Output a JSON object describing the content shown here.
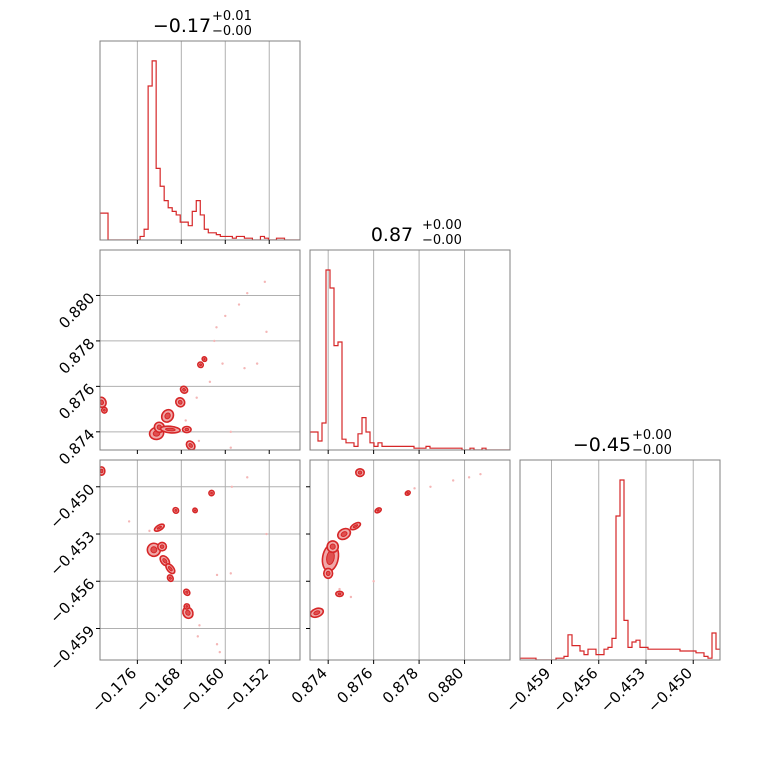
{
  "chart_data": [
    {
      "type": "histogram",
      "panel": "1-1",
      "title_main": "−0.17",
      "title_sup": "+0.01",
      "title_sub": "−0.00",
      "xlim": [
        -0.1828,
        -0.1464
      ],
      "x_edges_start": -0.1828,
      "bin_width": 0.00073,
      "counts": [
        15,
        15,
        0,
        0,
        0,
        0,
        0,
        0,
        0,
        0,
        2,
        6,
        86,
        100,
        40,
        30,
        22,
        18,
        16,
        14,
        10,
        10,
        8,
        16,
        22,
        14,
        6,
        4,
        4,
        3,
        2,
        2,
        2,
        1,
        2,
        2,
        1,
        1,
        0,
        0,
        2,
        1,
        0,
        0,
        1,
        1,
        0,
        0,
        0,
        0
      ],
      "xticks": [],
      "xticklabels": [],
      "yticks": [],
      "yticklabels": []
    },
    {
      "type": "contour",
      "panel": "2-1",
      "xlim": [
        -0.1828,
        -0.1464
      ],
      "ylim": [
        0.8732,
        0.882
      ],
      "yticks": [
        0.874,
        0.876,
        0.878,
        0.88
      ],
      "yticklabels": [
        "0.874",
        "0.876",
        "0.878",
        "0.880"
      ],
      "blobs": [
        {
          "x": -0.1725,
          "y": 0.87393,
          "rx": 0.0011,
          "ry": 0.00022,
          "rot": -10
        },
        {
          "x": -0.172,
          "y": 0.8742,
          "rx": 0.0007,
          "ry": 0.00018,
          "rot": -35
        },
        {
          "x": -0.1705,
          "y": 0.8747,
          "rx": 0.001,
          "ry": 0.0002,
          "rot": -55
        },
        {
          "x": -0.17,
          "y": 0.8741,
          "rx": 0.0016,
          "ry": 0.0001,
          "rot": 5
        },
        {
          "x": -0.167,
          "y": 0.8741,
          "rx": 0.0006,
          "ry": 9e-05,
          "rot": 0
        },
        {
          "x": -0.1682,
          "y": 0.8753,
          "rx": 0.0006,
          "ry": 0.00016,
          "rot": -40
        },
        {
          "x": -0.1675,
          "y": 0.87585,
          "rx": 0.0004,
          "ry": 0.00012,
          "rot": -50
        },
        {
          "x": -0.1663,
          "y": 0.8734,
          "rx": 0.0005,
          "ry": 0.00017,
          "rot": -40
        },
        {
          "x": -0.1645,
          "y": 0.87695,
          "rx": 0.0003,
          "ry": 8e-05,
          "rot": -45
        },
        {
          "x": -0.1638,
          "y": 0.8772,
          "rx": 0.0002,
          "ry": 6e-05,
          "rot": -45
        },
        {
          "x": -0.1825,
          "y": 0.8753,
          "rx": 0.0006,
          "ry": 0.00018,
          "rot": -20
        },
        {
          "x": -0.182,
          "y": 0.87495,
          "rx": 0.0003,
          "ry": 8e-05,
          "rot": 0
        }
      ],
      "scatter": [
        {
          "x": -0.1575,
          "y": 0.8796
        },
        {
          "x": -0.156,
          "y": 0.8801
        },
        {
          "x": -0.1528,
          "y": 0.8806
        },
        {
          "x": -0.1525,
          "y": 0.8784
        },
        {
          "x": -0.16,
          "y": 0.8791
        },
        {
          "x": -0.162,
          "y": 0.878
        },
        {
          "x": -0.1605,
          "y": 0.877
        },
        {
          "x": -0.1565,
          "y": 0.8768
        },
        {
          "x": -0.1652,
          "y": 0.8755
        },
        {
          "x": -0.159,
          "y": 0.874
        },
        {
          "x": -0.159,
          "y": 0.8733
        },
        {
          "x": -0.1648,
          "y": 0.8736
        },
        {
          "x": -0.1672,
          "y": 0.8745
        },
        {
          "x": -0.1616,
          "y": 0.8786
        },
        {
          "x": -0.1542,
          "y": 0.877
        },
        {
          "x": -0.1628,
          "y": 0.8762
        }
      ]
    },
    {
      "type": "histogram",
      "panel": "2-2",
      "title_main": "0.87",
      "title_sup": "+0.00",
      "title_sub": "−0.00",
      "xlim": [
        0.8732,
        0.882
      ],
      "x_edges_start": 0.8732,
      "bin_width": 0.000176,
      "counts": [
        10,
        10,
        5,
        15,
        100,
        90,
        58,
        60,
        6,
        4,
        4,
        2,
        9,
        18,
        10,
        4,
        2,
        4,
        2,
        2,
        2,
        2,
        2,
        2,
        2,
        2,
        1,
        1,
        1,
        2,
        1,
        1,
        1,
        1,
        1,
        1,
        1,
        1,
        0,
        0,
        1,
        0,
        0,
        1,
        0,
        0,
        0,
        0,
        0,
        0
      ],
      "xticks": [],
      "xticklabels": [],
      "yticks": [],
      "yticklabels": []
    },
    {
      "type": "contour",
      "panel": "3-1",
      "xlim": [
        -0.1828,
        -0.1464
      ],
      "ylim": [
        -0.461,
        -0.4483
      ],
      "xticks": [
        -0.176,
        -0.168,
        -0.16,
        -0.152
      ],
      "xticklabels": [
        "−0.176",
        "−0.168",
        "−0.160",
        "−0.152"
      ],
      "yticks": [
        -0.45,
        -0.453,
        -0.456,
        -0.459
      ],
      "yticklabels": [
        "−0.450",
        "−0.453",
        "−0.456",
        "−0.459"
      ],
      "blobs": [
        {
          "x": -0.173,
          "y": -0.454,
          "rx": 0.001,
          "ry": 0.00035,
          "rot": -10
        },
        {
          "x": -0.1715,
          "y": -0.4538,
          "rx": 0.0006,
          "ry": 0.0002,
          "rot": 0
        },
        {
          "x": -0.171,
          "y": -0.4547,
          "rx": 0.0005,
          "ry": 0.0003,
          "rot": -40
        },
        {
          "x": -0.17,
          "y": -0.4552,
          "rx": 0.0004,
          "ry": 0.0003,
          "rot": -40
        },
        {
          "x": -0.17,
          "y": -0.4558,
          "rx": 0.0003,
          "ry": 0.00015,
          "rot": -30
        },
        {
          "x": -0.172,
          "y": -0.4526,
          "rx": 0.0008,
          "ry": 0.0001,
          "rot": -30
        },
        {
          "x": -0.169,
          "y": -0.4515,
          "rx": 0.0003,
          "ry": 0.00012,
          "rot": -45
        },
        {
          "x": -0.1668,
          "y": -0.458,
          "rx": 0.0007,
          "ry": 0.0003,
          "rot": -30
        },
        {
          "x": -0.167,
          "y": -0.4576,
          "rx": 0.0003,
          "ry": 0.0001,
          "rot": -20
        },
        {
          "x": -0.167,
          "y": -0.4567,
          "rx": 0.0003,
          "ry": 0.00015,
          "rot": -45
        },
        {
          "x": -0.1625,
          "y": -0.4504,
          "rx": 0.0003,
          "ry": 0.0001,
          "rot": -40
        },
        {
          "x": -0.1655,
          "y": -0.4515,
          "rx": 0.0002,
          "ry": 8e-05,
          "rot": -40
        },
        {
          "x": -0.1825,
          "y": -0.449,
          "rx": 0.0004,
          "ry": 0.0002,
          "rot": 0
        }
      ],
      "scatter": [
        {
          "x": -0.1588,
          "y": -0.45
        },
        {
          "x": -0.156,
          "y": -0.4494
        },
        {
          "x": -0.1525,
          "y": -0.453
        },
        {
          "x": -0.159,
          "y": -0.4555
        },
        {
          "x": -0.1615,
          "y": -0.4556
        },
        {
          "x": -0.1647,
          "y": -0.4588
        },
        {
          "x": -0.1615,
          "y": -0.46
        },
        {
          "x": -0.161,
          "y": -0.4605
        },
        {
          "x": -0.1775,
          "y": -0.4522
        },
        {
          "x": -0.1738,
          "y": -0.4528
        },
        {
          "x": -0.165,
          "y": -0.4595
        }
      ]
    },
    {
      "type": "contour",
      "panel": "3-2",
      "xlim": [
        0.8732,
        0.882
      ],
      "ylim": [
        -0.461,
        -0.4483
      ],
      "xticks": [
        0.874,
        0.876,
        0.878,
        0.88
      ],
      "xticklabels": [
        "0.874",
        "0.876",
        "0.878",
        "0.880"
      ],
      "yticks": [],
      "yticklabels": [],
      "blobs": [
        {
          "x": 0.8741,
          "y": -0.4545,
          "rx": 0.0003,
          "ry": 0.0008,
          "rot": 10
        },
        {
          "x": 0.8742,
          "y": -0.4538,
          "rx": 0.0002,
          "ry": 0.0003,
          "rot": 0
        },
        {
          "x": 0.8747,
          "y": -0.453,
          "rx": 0.00025,
          "ry": 0.00025,
          "rot": -30
        },
        {
          "x": 0.874,
          "y": -0.4555,
          "rx": 0.00015,
          "ry": 0.00025,
          "rot": 0
        },
        {
          "x": 0.8745,
          "y": -0.4568,
          "rx": 0.00012,
          "ry": 0.0001,
          "rot": 0
        },
        {
          "x": 0.8735,
          "y": -0.458,
          "rx": 0.00025,
          "ry": 0.0002,
          "rot": -20
        },
        {
          "x": 0.8752,
          "y": -0.4525,
          "rx": 0.0002,
          "ry": 0.0001,
          "rot": -30
        },
        {
          "x": 0.8762,
          "y": -0.4515,
          "rx": 0.0001,
          "ry": 7e-05,
          "rot": -30
        },
        {
          "x": 0.8775,
          "y": -0.4504,
          "rx": 7e-05,
          "ry": 6e-05,
          "rot": -30
        },
        {
          "x": 0.8754,
          "y": -0.4491,
          "rx": 0.00014,
          "ry": 0.00018,
          "rot": 0
        }
      ],
      "scatter": [
        {
          "x": 0.8778,
          "y": -0.4501
        },
        {
          "x": 0.8785,
          "y": -0.45
        },
        {
          "x": 0.8795,
          "y": -0.4496
        },
        {
          "x": 0.8802,
          "y": -0.4494
        },
        {
          "x": 0.8807,
          "y": -0.4492
        },
        {
          "x": 0.875,
          "y": -0.457
        },
        {
          "x": 0.876,
          "y": -0.456
        },
        {
          "x": 0.8745,
          "y": -0.4565
        }
      ]
    },
    {
      "type": "histogram",
      "panel": "3-3",
      "title_main": "−0.45",
      "title_sup": "+0.00",
      "title_sub": "−0.00",
      "xlim": [
        -0.461,
        -0.4483
      ],
      "x_edges_start": -0.461,
      "bin_width": 0.000254,
      "counts": [
        1,
        1,
        1,
        1,
        0,
        0,
        0,
        0,
        0,
        1,
        1,
        2,
        14,
        8,
        8,
        5,
        3,
        6,
        6,
        3,
        3,
        6,
        7,
        12,
        80,
        100,
        22,
        7,
        10,
        11,
        7,
        7,
        6,
        6,
        6,
        6,
        6,
        6,
        6,
        6,
        5,
        5,
        5,
        5,
        4,
        4,
        2,
        1,
        15,
        6
      ],
      "xticks": [
        -0.459,
        -0.456,
        -0.453,
        -0.45
      ],
      "xticklabels": [
        "−0.459",
        "−0.456",
        "−0.453",
        "−0.450"
      ],
      "yticks": [],
      "yticklabels": []
    }
  ]
}
